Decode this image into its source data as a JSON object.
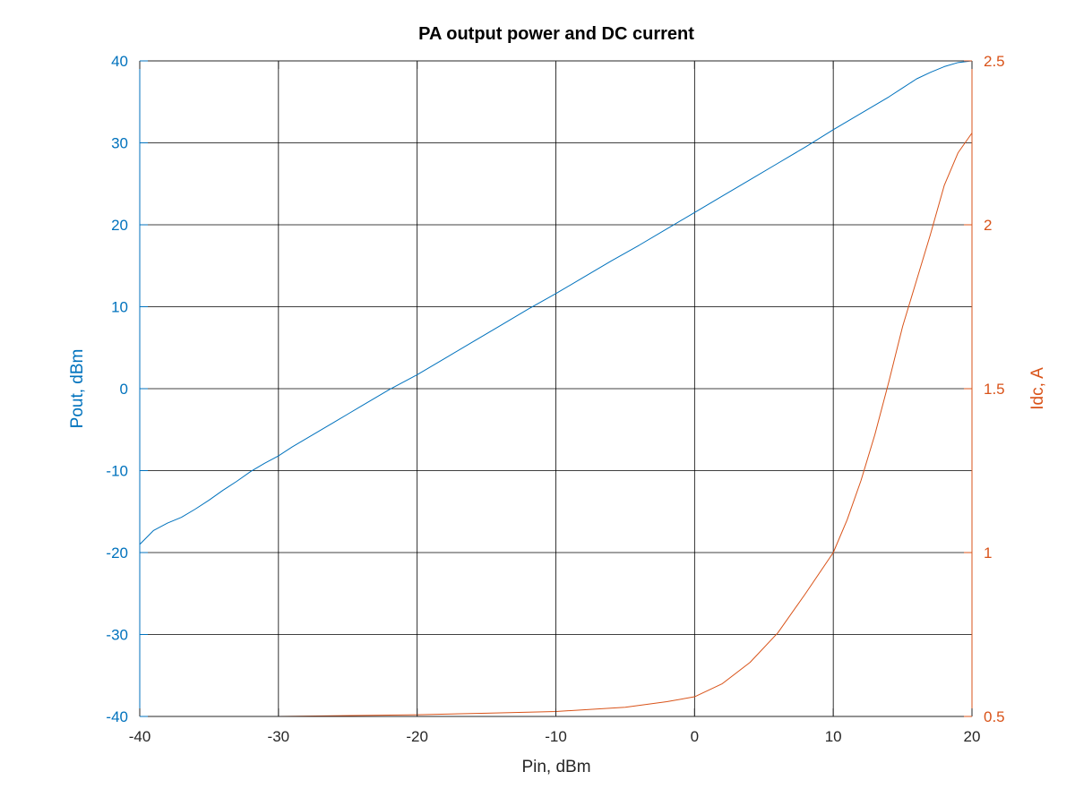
{
  "chart_data": {
    "type": "line",
    "title": "PA output power and DC current",
    "xlabel": "Pin, dBm",
    "ylabel_left": "Pout, dBm",
    "ylabel_right": "Idc, A",
    "xlim": [
      -40,
      20
    ],
    "ylim_left": [
      -40,
      40
    ],
    "ylim_right": [
      0.5,
      2.5
    ],
    "xticks": [
      -40,
      -30,
      -20,
      -10,
      0,
      10,
      20
    ],
    "xtick_labels": [
      "-40",
      "-30",
      "-20",
      "-10",
      "0",
      "10",
      "20"
    ],
    "yticks_left": [
      -40,
      -30,
      -20,
      -10,
      0,
      10,
      20,
      30,
      40
    ],
    "ytick_labels_left": [
      "-40",
      "-30",
      "-20",
      "-10",
      "0",
      "10",
      "20",
      "30",
      "40"
    ],
    "yticks_right": [
      0.5,
      1,
      1.5,
      2,
      2.5
    ],
    "ytick_labels_right": [
      "0.5",
      "1",
      "1.5",
      "2",
      "2.5"
    ],
    "grid": true,
    "colors": {
      "left": "#0072bd",
      "right": "#d95319",
      "grid": "#000000"
    },
    "series": [
      {
        "axis": "left",
        "x": [
          -40,
          -39,
          -38,
          -37,
          -36,
          -35,
          -34,
          -33,
          -32,
          -31,
          -30,
          -29,
          -28,
          -27,
          -26,
          -25,
          -24,
          -23,
          -22,
          -21,
          -20,
          -18,
          -16,
          -14,
          -12,
          -10,
          -8,
          -6,
          -4,
          -2,
          0,
          2,
          4,
          6,
          8,
          10,
          12,
          14,
          15,
          16,
          17,
          18,
          19,
          20
        ],
        "y": [
          -19.0,
          -17.3,
          -16.4,
          -15.7,
          -14.7,
          -13.6,
          -12.4,
          -11.3,
          -10.1,
          -9.1,
          -8.2,
          -7.1,
          -6.1,
          -5.1,
          -4.1,
          -3.1,
          -2.1,
          -1.1,
          -0.1,
          0.8,
          1.7,
          3.7,
          5.7,
          7.7,
          9.7,
          11.6,
          13.6,
          15.6,
          17.5,
          19.5,
          21.5,
          23.5,
          25.5,
          27.5,
          29.5,
          31.6,
          33.6,
          35.6,
          36.7,
          37.8,
          38.6,
          39.3,
          39.8,
          40.0
        ]
      },
      {
        "axis": "right",
        "x": [
          -40,
          -30,
          -20,
          -15,
          -10,
          -5,
          -2,
          0,
          2,
          4,
          6,
          8,
          10,
          11,
          12,
          13,
          14,
          15,
          16,
          17,
          18,
          19,
          20
        ],
        "y": [
          0.5,
          0.5,
          0.505,
          0.51,
          0.515,
          0.528,
          0.545,
          0.56,
          0.6,
          0.665,
          0.755,
          0.875,
          1.0,
          1.1,
          1.22,
          1.36,
          1.52,
          1.69,
          1.83,
          1.97,
          2.12,
          2.22,
          2.28
        ]
      }
    ]
  }
}
